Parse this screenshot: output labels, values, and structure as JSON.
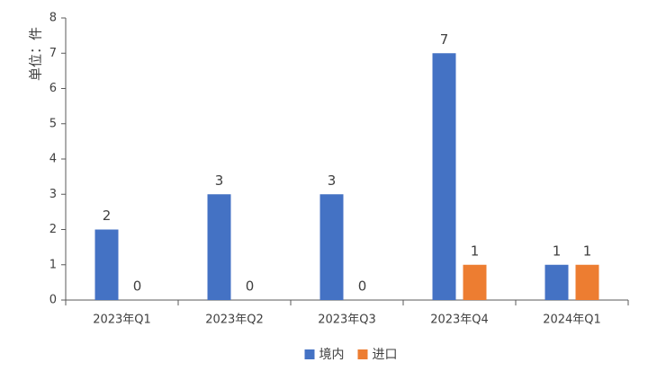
{
  "chart_data": {
    "type": "bar",
    "title": "",
    "xlabel": "",
    "ylabel": "单位：件",
    "ylim": [
      0,
      8
    ],
    "yticks": [
      "0",
      "1",
      "2",
      "3",
      "4",
      "5",
      "6",
      "7",
      "8"
    ],
    "categories": [
      "2023年Q1",
      "2023年Q2",
      "2023年Q3",
      "2023年Q4",
      "2024年Q1"
    ],
    "series": [
      {
        "name": "境内",
        "color": "#4472C4",
        "values": [
          2,
          3,
          3,
          7,
          1
        ]
      },
      {
        "name": "进口",
        "color": "#ED7D31",
        "values": [
          0,
          0,
          0,
          1,
          1
        ]
      }
    ],
    "data_labels": true,
    "grid": false,
    "legend_position": "bottom"
  }
}
